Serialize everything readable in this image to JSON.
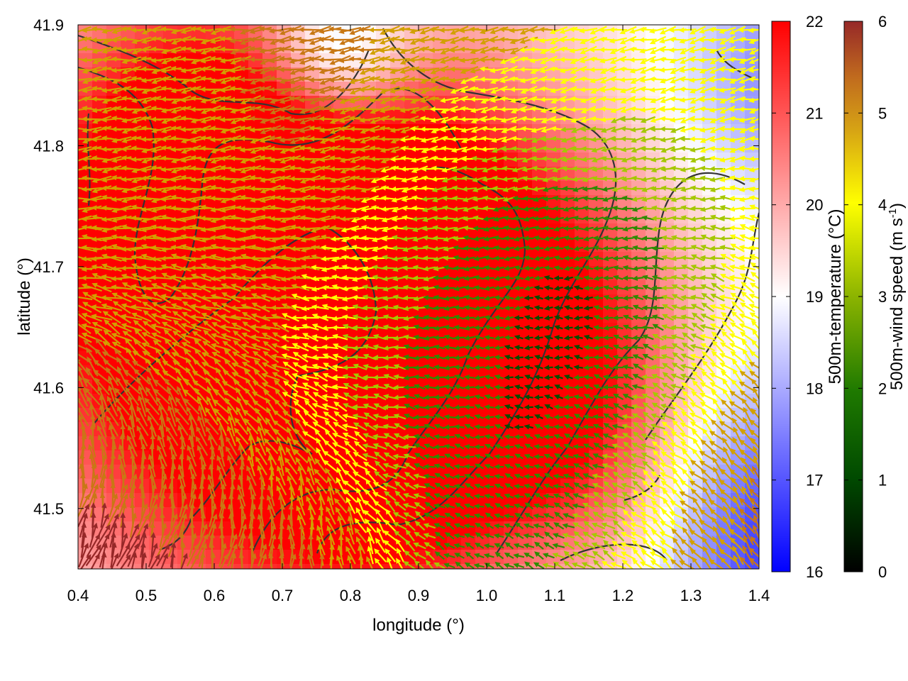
{
  "map": {
    "x_axis": {
      "title": "longitude (°)",
      "range": [
        0.4,
        1.4
      ],
      "ticks": [
        "0.4",
        "0.5",
        "0.6",
        "0.7",
        "0.8",
        "0.9",
        "1.0",
        "1.1",
        "1.2",
        "1.3",
        "1.4"
      ]
    },
    "y_axis": {
      "title": "latitude (°)",
      "range": [
        41.45,
        41.9
      ],
      "ticks": [
        "41.5",
        "41.6",
        "41.7",
        "41.8",
        "41.9"
      ]
    },
    "temperature_colorbar": {
      "title": "500m-temperature (°C)",
      "range": [
        16,
        22
      ],
      "ticks": [
        "16",
        "17",
        "18",
        "19",
        "20",
        "21",
        "22"
      ],
      "colors": {
        "low": "#0000ff",
        "mid": "#ffffff",
        "high": "#ff0000"
      }
    },
    "wind_colorbar": {
      "title_main": "500m-wind speed (m s",
      "title_sup": "-1",
      "title_end": ")",
      "range": [
        0,
        6
      ],
      "ticks": [
        "0",
        "1",
        "2",
        "3",
        "4",
        "5",
        "6"
      ],
      "colors": [
        "#000000",
        "#005000",
        "#2d8c00",
        "#a5c800",
        "#ffff00",
        "#d2a000",
        "#c87814",
        "#962828"
      ]
    },
    "contour_color": "#333333"
  }
}
